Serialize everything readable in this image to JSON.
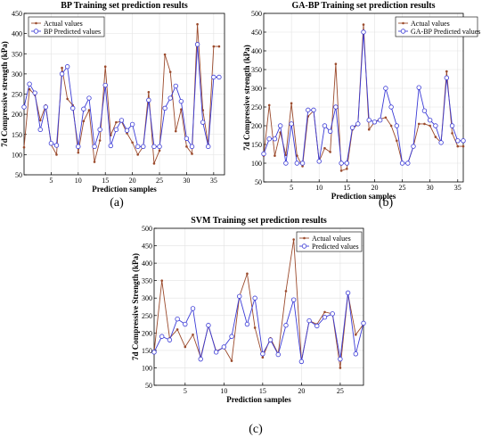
{
  "colors": {
    "actual": "#9b4a2c",
    "predicted": "#3b3bd6",
    "grid": "#e2e2e2",
    "axis": "#000000"
  },
  "chart_data": [
    {
      "type": "line",
      "panel_label": "(a)",
      "title": "BP Training set prediction results",
      "xlabel": "Prediction samples",
      "ylabel": "7d Compressive strength (kPa)",
      "xlim": [
        0,
        37
      ],
      "ylim": [
        50,
        450
      ],
      "xticks": [
        5,
        10,
        15,
        20,
        25,
        30,
        35
      ],
      "yticks": [
        50,
        100,
        150,
        200,
        250,
        300,
        350,
        400,
        450
      ],
      "grid": true,
      "legend_position": "top-left",
      "x": [
        0,
        1,
        2,
        3,
        4,
        5,
        6,
        7,
        8,
        9,
        10,
        11,
        12,
        13,
        14,
        15,
        16,
        17,
        18,
        19,
        20,
        21,
        22,
        23,
        24,
        25,
        26,
        27,
        28,
        29,
        30,
        31,
        32,
        33,
        34,
        35,
        36
      ],
      "series": [
        {
          "name": "Actual values",
          "values": [
            118,
            262,
            248,
            185,
            222,
            125,
            100,
            315,
            238,
            222,
            105,
            183,
            210,
            82,
            135,
            318,
            148,
            180,
            182,
            153,
            130,
            100,
            120,
            255,
            78,
            110,
            348,
            305,
            158,
            212,
            120,
            102,
            423,
            210,
            125,
            368,
            368
          ]
        },
        {
          "name": "BP Predicted values",
          "values": [
            218,
            275,
            253,
            162,
            218,
            128,
            123,
            300,
            318,
            215,
            120,
            213,
            240,
            120,
            162,
            272,
            122,
            162,
            185,
            160,
            175,
            120,
            120,
            235,
            120,
            120,
            215,
            240,
            270,
            232,
            140,
            120,
            373,
            180,
            120,
            292,
            292
          ]
        }
      ]
    },
    {
      "type": "line",
      "panel_label": "(b)",
      "title": "GA-BP Training set prediction results",
      "xlabel": "Prediction samples",
      "ylabel": "7d Compressive strength (kPa)",
      "xlim": [
        0,
        36
      ],
      "ylim": [
        50,
        500
      ],
      "xticks": [
        5,
        10,
        15,
        20,
        25,
        30,
        35
      ],
      "yticks": [
        50,
        100,
        150,
        200,
        250,
        300,
        350,
        400,
        450,
        500
      ],
      "grid": true,
      "legend_position": "top-left",
      "x": [
        0,
        1,
        2,
        3,
        4,
        5,
        6,
        7,
        8,
        9,
        10,
        11,
        12,
        13,
        14,
        15,
        16,
        17,
        18,
        19,
        20,
        21,
        22,
        23,
        24,
        25,
        26,
        27,
        28,
        29,
        30,
        31,
        32,
        33,
        34,
        35,
        36
      ],
      "series": [
        {
          "name": "Actual values",
          "values": [
            120,
            255,
            120,
            182,
            122,
            260,
            120,
            92,
            225,
            240,
            105,
            140,
            130,
            365,
            80,
            85,
            190,
            205,
            470,
            190,
            210,
            218,
            222,
            200,
            160,
            100,
            100,
            145,
            205,
            205,
            200,
            170,
            155,
            345,
            180,
            145,
            145
          ]
        },
        {
          "name": "GA-BP Predicted values",
          "values": [
            125,
            165,
            165,
            200,
            100,
            205,
            100,
            100,
            242,
            242,
            105,
            200,
            185,
            250,
            100,
            100,
            195,
            205,
            450,
            215,
            210,
            215,
            300,
            250,
            200,
            100,
            100,
            145,
            302,
            240,
            215,
            200,
            155,
            328,
            200,
            160,
            160
          ]
        }
      ]
    },
    {
      "type": "line",
      "panel_label": "(c)",
      "title": "SVM Training set prediction results",
      "xlabel": "Prediction samples",
      "ylabel": "7d Compressive Strength (kPa)",
      "xlim": [
        1,
        28
      ],
      "ylim": [
        50,
        500
      ],
      "xticks": [
        5,
        10,
        15,
        20,
        25
      ],
      "yticks": [
        50,
        100,
        150,
        200,
        250,
        300,
        350,
        400,
        450,
        500
      ],
      "grid": true,
      "legend_position": "top-right",
      "x": [
        1,
        2,
        3,
        4,
        5,
        6,
        7,
        8,
        9,
        10,
        11,
        12,
        13,
        14,
        15,
        16,
        17,
        18,
        19,
        20,
        21,
        22,
        23,
        24,
        25,
        26,
        27,
        28
      ],
      "series": [
        {
          "name": "Actual values",
          "values": [
            145,
            350,
            185,
            210,
            160,
            195,
            130,
            220,
            148,
            158,
            120,
            305,
            370,
            215,
            130,
            185,
            140,
            320,
            468,
            120,
            235,
            225,
            260,
            255,
            100,
            312,
            195,
            225
          ]
        },
        {
          "name": "Predicted values",
          "values": [
            145,
            190,
            180,
            240,
            225,
            270,
            125,
            222,
            145,
            160,
            190,
            305,
            225,
            300,
            140,
            180,
            138,
            222,
            295,
            118,
            235,
            220,
            245,
            255,
            125,
            315,
            140,
            228
          ]
        }
      ]
    }
  ]
}
